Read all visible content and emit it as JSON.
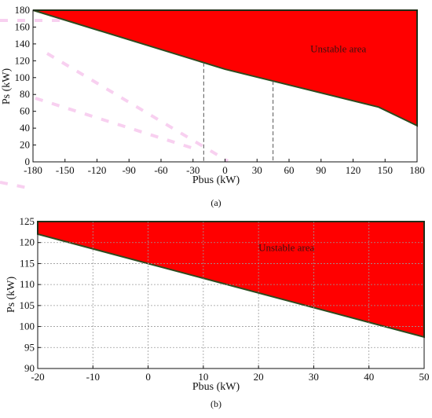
{
  "chart_data": [
    {
      "id": "a",
      "type": "area",
      "caption": "(a)",
      "xlabel": "Pbus (kW)",
      "ylabel": "Ps (kW)",
      "xlim": [
        -180,
        180
      ],
      "ylim": [
        0,
        180
      ],
      "xticks": [
        -180,
        -150,
        -120,
        -90,
        -60,
        -30,
        0,
        30,
        60,
        90,
        120,
        150,
        180
      ],
      "yticks": [
        0,
        20,
        40,
        60,
        80,
        100,
        120,
        140,
        160,
        180
      ],
      "grid": false,
      "region": {
        "boundary_x": [
          -180,
          180,
          180,
          144,
          0,
          -180
        ],
        "boundary_y": [
          180,
          180,
          43,
          65,
          110,
          180
        ],
        "color": "#ff0000"
      },
      "reference_lines_x": [
        -20,
        45
      ],
      "annotation": "Unstable area",
      "annotation_at": [
        80,
        130
      ]
    },
    {
      "id": "b",
      "type": "area",
      "caption": "(b)",
      "xlabel": "Pbus (kW)",
      "ylabel": "Ps (kW)",
      "xlim": [
        -20,
        50
      ],
      "ylim": [
        90,
        125
      ],
      "xticks": [
        -20,
        -10,
        0,
        10,
        20,
        30,
        40,
        50
      ],
      "yticks": [
        90,
        95,
        100,
        105,
        110,
        115,
        120,
        125
      ],
      "grid": true,
      "region": {
        "boundary_x": [
          -20,
          50,
          50,
          -20
        ],
        "boundary_y": [
          125,
          125,
          97.5,
          122
        ],
        "color": "#ff0000"
      },
      "annotation": "Unstable area",
      "annotation_at": [
        20,
        118
      ]
    }
  ]
}
